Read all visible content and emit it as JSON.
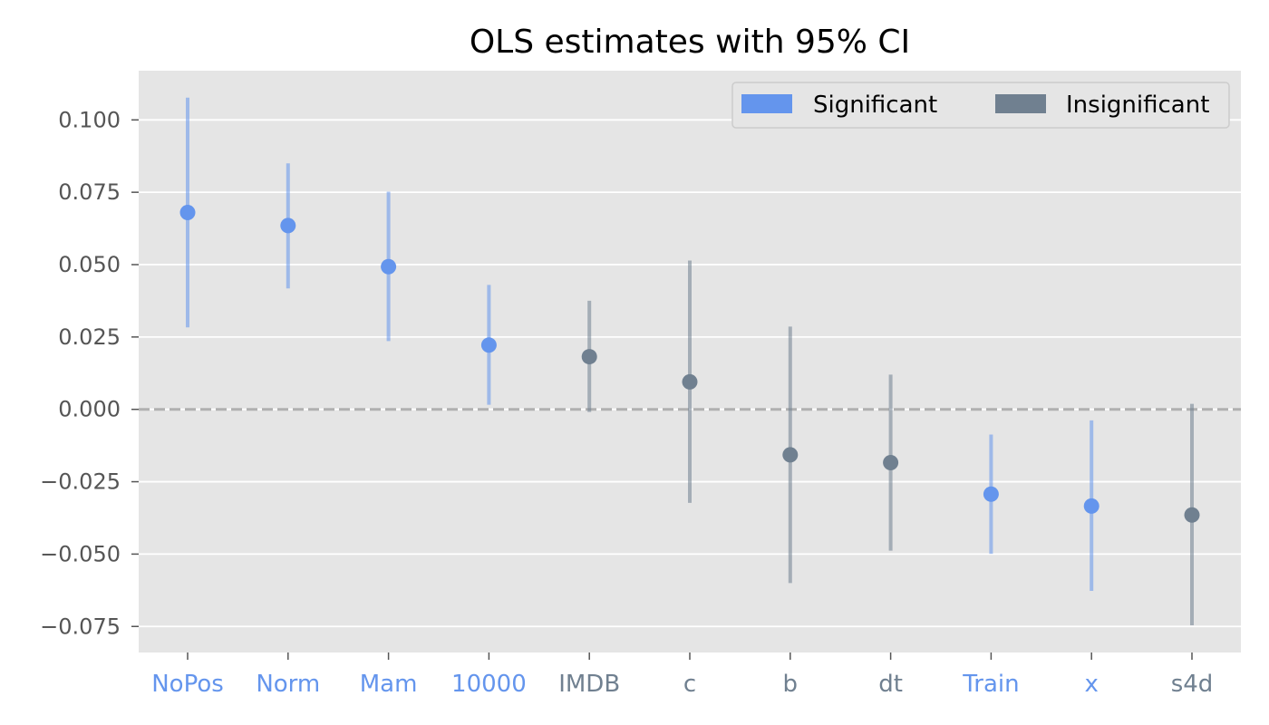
{
  "chart_data": {
    "type": "scatter",
    "title": "OLS estimates with 95% CI",
    "xlabel": "",
    "ylabel": "",
    "ylim": [
      -0.084,
      0.117
    ],
    "yticks": [
      -0.075,
      -0.05,
      -0.025,
      0.0,
      0.025,
      0.05,
      0.075,
      0.1
    ],
    "ytick_labels": [
      "−0.075",
      "−0.050",
      "−0.025",
      "0.000",
      "0.025",
      "0.050",
      "0.075",
      "0.100"
    ],
    "grid": true,
    "reference_line": 0.0,
    "legend_position": "top-right",
    "legend": [
      {
        "label": "Significant",
        "color": "#6495ed"
      },
      {
        "label": "Insignificant",
        "color": "#708090"
      }
    ],
    "colors": {
      "significant": "#6495ed",
      "insignificant": "#708090"
    },
    "categories": [
      "NoPos",
      "Norm",
      "Mam",
      "10000",
      "IMDB",
      "c",
      "b",
      "dt",
      "Train",
      "x",
      "s4d"
    ],
    "estimates": [
      0.068,
      0.0635,
      0.0493,
      0.0222,
      0.0182,
      0.0095,
      -0.0157,
      -0.0184,
      -0.0293,
      -0.0334,
      -0.0365
    ],
    "ci_lower": [
      0.0283,
      0.0418,
      0.0236,
      0.0016,
      -0.0009,
      -0.0323,
      -0.06,
      -0.0488,
      -0.0499,
      -0.0627,
      -0.0746
    ],
    "ci_upper": [
      0.1077,
      0.085,
      0.0752,
      0.043,
      0.0375,
      0.0514,
      0.0286,
      0.012,
      -0.0087,
      -0.0038,
      0.0019
    ],
    "significant": [
      true,
      true,
      true,
      true,
      false,
      false,
      false,
      false,
      true,
      true,
      false
    ]
  }
}
